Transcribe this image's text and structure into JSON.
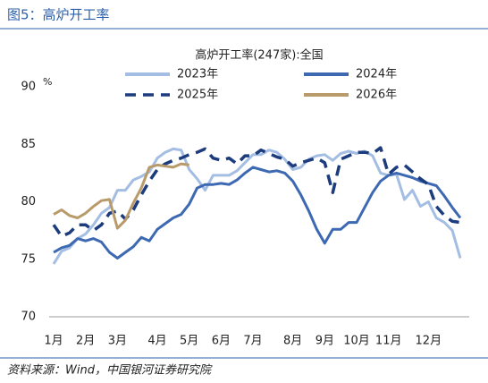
{
  "header": "图5：高炉开工率",
  "source": "资料来源：Wind，中国银河证券研究院",
  "chart_data": {
    "type": "line",
    "title": "高炉开工率(247家):全国",
    "ylabel": "%",
    "categories": [
      "1月",
      null,
      null,
      null,
      "2月",
      null,
      null,
      null,
      "3月",
      null,
      null,
      null,
      null,
      "4月",
      null,
      null,
      null,
      "5月",
      null,
      null,
      null,
      "6月",
      null,
      null,
      null,
      "7月",
      null,
      null,
      null,
      null,
      "8月",
      null,
      null,
      null,
      "9月",
      null,
      null,
      null,
      "10月",
      null,
      null,
      null,
      "11月",
      null,
      null,
      null,
      null,
      "12月",
      null,
      null,
      null,
      null
    ],
    "ylim": [
      70,
      90
    ],
    "yticks": [
      70,
      75,
      80,
      85,
      90
    ],
    "grid": false,
    "series": [
      {
        "name": "2023年",
        "color": "#a3bde3",
        "dash": false,
        "values": [
          74.6,
          75.7,
          76.0,
          76.8,
          77.2,
          78.0,
          79.0,
          79.5,
          81.0,
          81.0,
          81.9,
          82.2,
          82.6,
          83.8,
          84.3,
          84.6,
          84.5,
          82.8,
          82.0,
          81.0,
          82.3,
          82.3,
          82.3,
          82.7,
          83.4,
          84.1,
          84.1,
          84.5,
          84.3,
          83.7,
          82.8,
          83.0,
          83.7,
          84.0,
          84.1,
          83.6,
          84.2,
          84.4,
          84.2,
          84.4,
          84.0,
          82.5,
          82.3,
          82.4,
          80.2,
          81.0,
          79.6,
          80.0,
          78.6,
          78.2,
          77.5,
          75.1
        ]
      },
      {
        "name": "2024年",
        "color": "#3d68b2",
        "dash": false,
        "values": [
          75.6,
          76.0,
          76.2,
          76.8,
          76.6,
          76.8,
          76.5,
          75.6,
          75.1,
          75.6,
          76.1,
          76.9,
          76.6,
          77.6,
          78.1,
          78.6,
          78.9,
          79.8,
          81.2,
          81.5,
          81.5,
          81.6,
          81.5,
          81.9,
          82.5,
          83.0,
          82.8,
          82.6,
          82.7,
          82.5,
          81.8,
          80.6,
          79.2,
          77.6,
          76.4,
          77.6,
          77.6,
          78.2,
          78.2,
          79.5,
          80.8,
          81.8,
          82.3,
          82.5,
          82.3,
          82.1,
          81.8,
          81.6,
          81.4,
          80.5,
          79.5,
          78.6
        ]
      },
      {
        "name": "2025年",
        "color": "#1d3c7e",
        "dash": true,
        "values": [
          78.0,
          77.0,
          77.3,
          78.0,
          78.0,
          77.5,
          78.0,
          79.0,
          79.2,
          78.5,
          79.3,
          80.6,
          81.8,
          82.8,
          83.3,
          83.6,
          83.8,
          84.1,
          84.3,
          84.6,
          83.8,
          83.6,
          83.8,
          83.3,
          84.0,
          84.0,
          84.5,
          84.2,
          83.9,
          83.7,
          83.1,
          83.4,
          83.6,
          83.8,
          83.4,
          80.8,
          83.7,
          84.0,
          84.3,
          84.3,
          84.2,
          84.7,
          82.4,
          83.0,
          83.2,
          82.6,
          82.0,
          81.5,
          79.6,
          78.8,
          78.3,
          78.2
        ]
      },
      {
        "name": "2026年",
        "color": "#b99b6b",
        "dash": false,
        "values": [
          78.9,
          79.3,
          78.8,
          78.6,
          79.0,
          79.6,
          80.1,
          80.2,
          77.7,
          78.4,
          79.9,
          81.2,
          83.0,
          83.2,
          83.1,
          83.0,
          83.3,
          83.2,
          null,
          null,
          null,
          null,
          null,
          null,
          null,
          null,
          null,
          null,
          null,
          null,
          null,
          null,
          null,
          null,
          null,
          null,
          null,
          null,
          null,
          null,
          null,
          null,
          null,
          null,
          null,
          null,
          null,
          null,
          null,
          null,
          null,
          null
        ]
      }
    ]
  }
}
